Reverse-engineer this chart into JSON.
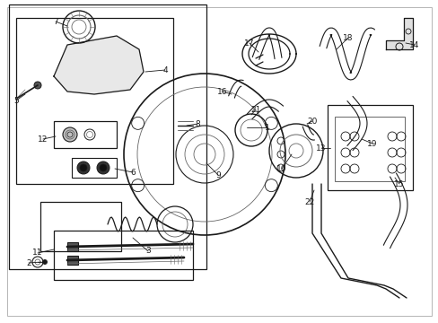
{
  "background_color": "#ffffff",
  "fig_width": 4.89,
  "fig_height": 3.6,
  "dpi": 100,
  "dark": "#1a1a1a",
  "gray": "#666666",
  "light_gray": "#999999"
}
